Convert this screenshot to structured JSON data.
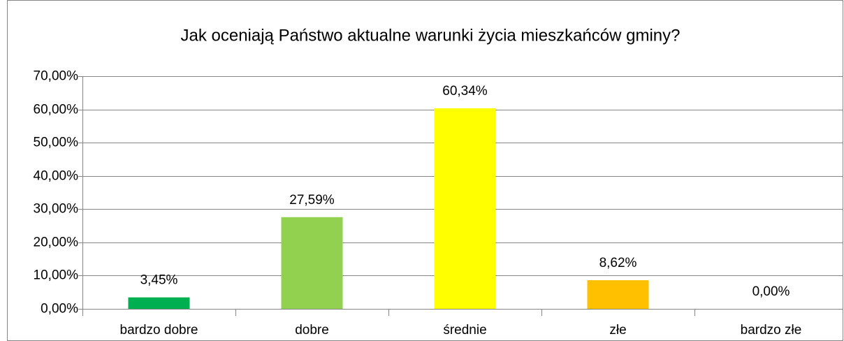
{
  "chart_data": {
    "type": "bar",
    "title": "Jak oceniają Państwo aktualne warunki życia mieszkańców gminy?",
    "categories": [
      "bardzo dobre",
      "dobre",
      "średnie",
      "złe",
      "bardzo złe"
    ],
    "values": [
      3.45,
      27.59,
      60.34,
      8.62,
      0
    ],
    "value_labels": [
      "3,45%",
      "27,59%",
      "60,34%",
      "8,62%",
      "0,00%"
    ],
    "colors": [
      "#00b050",
      "#92d050",
      "#ffff00",
      "#ffc000"
    ],
    "ylim": [
      0,
      70
    ],
    "yticks": [
      {
        "value": 0,
        "label": "0,00%"
      },
      {
        "value": 10,
        "label": "10,00%"
      },
      {
        "value": 20,
        "label": "20,00%"
      },
      {
        "value": 30,
        "label": "30,00%"
      },
      {
        "value": 40,
        "label": "40,00%"
      },
      {
        "value": 50,
        "label": "50,00%"
      },
      {
        "value": 60,
        "label": "60,00%"
      },
      {
        "value": 70,
        "label": "70,00%"
      }
    ],
    "grid": true
  }
}
